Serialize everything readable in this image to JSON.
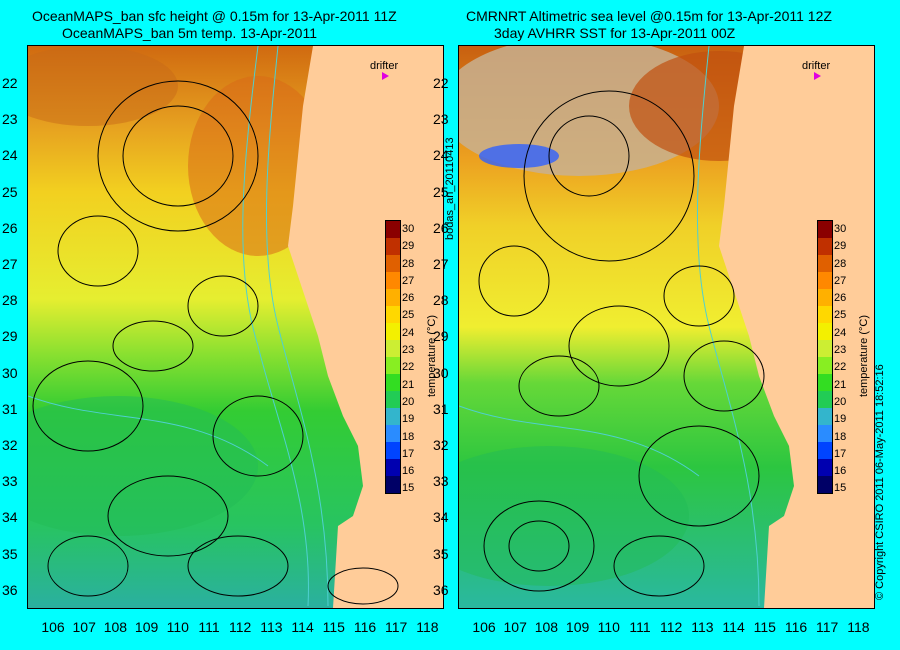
{
  "left": {
    "title_line1": "OceanMAPS_ban sfc height @ 0.15m for 13-Apr-2011 11Z",
    "title_line2": "OceanMAPS_ban 5m temp. 13-Apr-2011"
  },
  "right": {
    "title_line1": "CMRNRT Altimetric sea level  @0.15m  for 13-Apr-2011 12Z",
    "title_line2": "3day AVHRR SST for 13-Apr-2011 00Z"
  },
  "drifter_label": "drifter",
  "colorbar": {
    "label": "temperature (°C)",
    "ticks": [
      "30",
      "29",
      "28",
      "27",
      "26",
      "25",
      "24",
      "23",
      "22",
      "21",
      "20",
      "19",
      "18",
      "17",
      "16",
      "15"
    ],
    "range": [
      15,
      30
    ],
    "colors": [
      "#000066",
      "#0000b0",
      "#0044ff",
      "#2a8cff",
      "#33b5cc",
      "#22cc55",
      "#33dd22",
      "#88ee22",
      "#ccee33",
      "#f3f000",
      "#ffd800",
      "#ffb000",
      "#ff8800",
      "#e06000",
      "#c03000",
      "#8a0000"
    ]
  },
  "y_labels": [
    "22",
    "23",
    "24",
    "25",
    "26",
    "27",
    "28",
    "29",
    "30",
    "31",
    "32",
    "33",
    "34",
    "35",
    "36"
  ],
  "x_labels": [
    "106",
    "107",
    "108",
    "109",
    "110",
    "111",
    "112",
    "113",
    "114",
    "115",
    "116",
    "117",
    "118"
  ],
  "side_text": {
    "bodas": "bodas_an_20110413",
    "copyright": "© Copyright CSIRO 2011   06-May-2011 18:52:16"
  },
  "colors": {
    "background": "#00ffff",
    "land": "#ffcc99",
    "drifter": "#e000e0",
    "bathymetry": "#4fd0d0",
    "missing": "#c8b090"
  }
}
